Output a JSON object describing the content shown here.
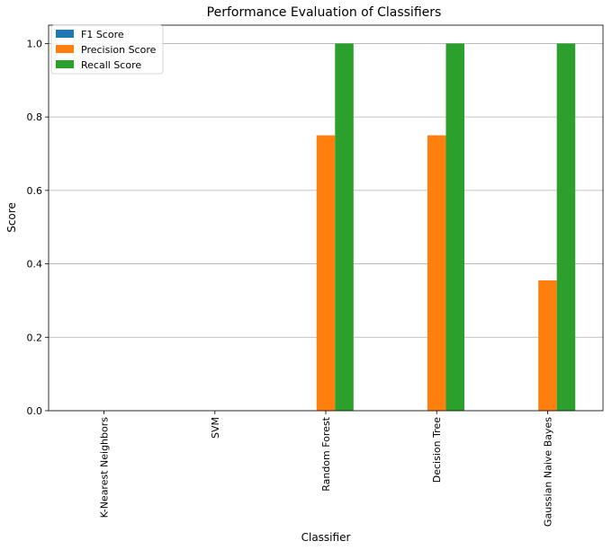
{
  "chart_data": {
    "type": "bar",
    "title": "Performance Evaluation of Classifiers",
    "xlabel": "Classifier",
    "ylabel": "Score",
    "ylim": [
      0,
      1.05
    ],
    "yticks": [
      "0.0",
      "0.2",
      "0.4",
      "0.6",
      "0.8",
      "1.0"
    ],
    "grid": "horizontal",
    "legend_position": "top-left",
    "categories": [
      "K-Nearest Neighbors",
      "SVM",
      "Random Forest",
      "Decision Tree",
      "Gaussian Naive Bayes"
    ],
    "series": [
      {
        "name": "F1 Score",
        "color": "#1f77b4",
        "values": [
          0,
          0,
          0,
          0,
          0
        ]
      },
      {
        "name": "Precision Score",
        "color": "#ff7f0e",
        "values": [
          0,
          0,
          0.75,
          0.75,
          0.355
        ]
      },
      {
        "name": "Recall Score",
        "color": "#2ca02c",
        "values": [
          0,
          0,
          1.0,
          1.0,
          1.0
        ]
      }
    ]
  }
}
